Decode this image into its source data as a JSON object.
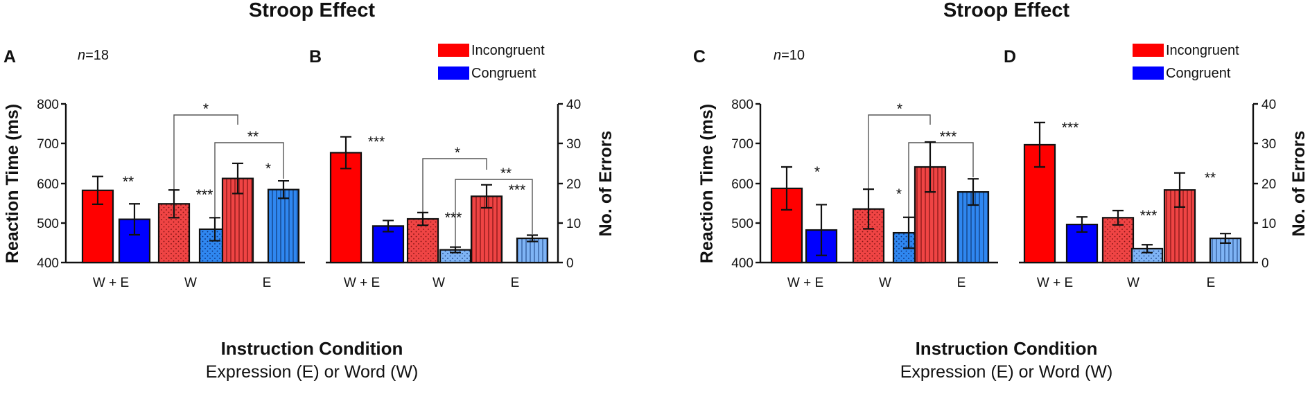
{
  "chart_data": [
    {
      "type": "bar",
      "figure_title": "Stroop Effect",
      "panels": [
        {
          "letter": "A",
          "n_label": "=18",
          "ylabel": "Reaction Time  (ms)",
          "ylim": [
            400,
            800
          ],
          "yticks": [
            "400",
            "500",
            "600",
            "700",
            "800"
          ],
          "categories": [
            "W + E",
            "W",
            "E"
          ],
          "series": [
            {
              "name": "Incongruent",
              "values": [
                582,
                548,
                612
              ],
              "errors": [
                35,
                35,
                38
              ]
            },
            {
              "name": "Congruent",
              "values": [
                509,
                484,
                584
              ],
              "errors": [
                39,
                29,
                22
              ]
            }
          ],
          "significance": [
            "**",
            "***",
            "*"
          ],
          "brackets": [
            {
              "label": "*",
              "from_category": "W",
              "to_category": "E",
              "series": "Incongruent"
            },
            {
              "label": "**",
              "from_category": "W",
              "to_category": "E",
              "series": "Congruent"
            }
          ]
        },
        {
          "letter": "B",
          "ylabel": "No. of Errors",
          "ylim": [
            0,
            40
          ],
          "yticks": [
            "0",
            "10",
            "20",
            "30",
            "40"
          ],
          "categories": [
            "W + E",
            "W",
            "E"
          ],
          "series": [
            {
              "name": "Incongruent",
              "values": [
                27.7,
                11.0,
                16.7
              ],
              "errors": [
                4.0,
                1.6,
                2.9
              ]
            },
            {
              "name": "Congruent",
              "values": [
                9.2,
                3.2,
                6.1
              ],
              "errors": [
                1.4,
                0.7,
                0.8
              ]
            }
          ],
          "significance": [
            "***",
            "***",
            "***"
          ],
          "brackets": [
            {
              "label": "*",
              "from_category": "W",
              "to_category": "E",
              "series": "Incongruent"
            },
            {
              "label": "**",
              "from_category": "W",
              "to_category": "E",
              "series": "Congruent"
            }
          ]
        }
      ],
      "legend": [
        "Incongruent",
        "Congruent"
      ],
      "xlabel": "Instruction Condition",
      "xlabel_sub": "Expression (E) or Word (W)"
    },
    {
      "type": "bar",
      "figure_title": "Stroop Effect",
      "panels": [
        {
          "letter": "C",
          "n_label": "=10",
          "ylabel": "Reaction Time  (ms)",
          "ylim": [
            400,
            800
          ],
          "yticks": [
            "400",
            "500",
            "600",
            "700",
            "800"
          ],
          "categories": [
            "W + E",
            "W",
            "E"
          ],
          "series": [
            {
              "name": "Incongruent",
              "values": [
                587,
                535,
                641
              ],
              "errors": [
                54,
                50,
                63
              ]
            },
            {
              "name": "Congruent",
              "values": [
                482,
                475,
                578
              ],
              "errors": [
                64,
                39,
                33
              ]
            }
          ],
          "significance": [
            "*",
            "*",
            ""
          ],
          "brackets": [
            {
              "label": "*",
              "from_category": "W",
              "to_category": "E",
              "series": "Incongruent"
            },
            {
              "label": "***",
              "from_category": "W",
              "to_category": "E",
              "series": "Congruent"
            }
          ]
        },
        {
          "letter": "D",
          "ylabel": "No. of Errors",
          "ylim": [
            0,
            40
          ],
          "yticks": [
            "0",
            "10",
            "20",
            "30",
            "40"
          ],
          "categories": [
            "W + E",
            "W",
            "E"
          ],
          "series": [
            {
              "name": "Incongruent",
              "values": [
                29.7,
                11.3,
                18.3
              ],
              "errors": [
                5.6,
                1.8,
                4.3
              ]
            },
            {
              "name": "Congruent",
              "values": [
                9.6,
                3.5,
                6.1
              ],
              "errors": [
                1.9,
                1.0,
                1.2
              ]
            }
          ],
          "significance": [
            "***",
            "***",
            "**"
          ],
          "brackets": []
        }
      ],
      "legend": [
        "Incongruent",
        "Congruent"
      ],
      "xlabel": "Instruction Condition",
      "xlabel_sub": "Expression (E) or Word (W)"
    }
  ],
  "colors": {
    "incongruent": "#ff0000",
    "incongruent_patterned": "#ef4444",
    "congruent": "#0000ff",
    "congruent_patterned": "#2f87f0"
  }
}
